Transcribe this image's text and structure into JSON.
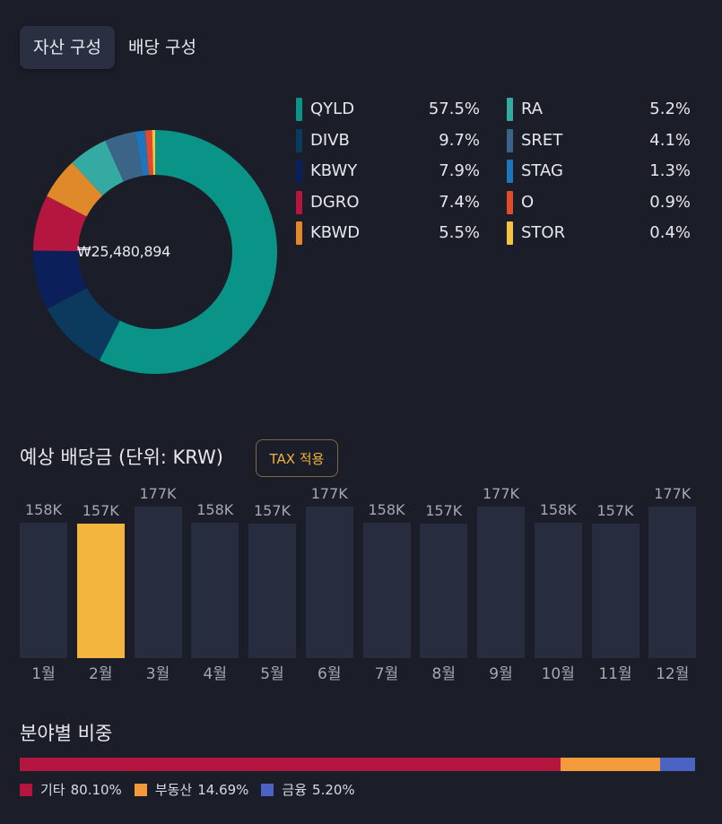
{
  "tabs": [
    {
      "label": "자산 구성",
      "active": true
    },
    {
      "label": "배당 구성",
      "active": false
    }
  ],
  "asset_composition": {
    "total": "₩25,480,894",
    "holdings": [
      {
        "ticker": "QYLD",
        "pct": "57.5%",
        "value": 57.5,
        "color": "#0a9387"
      },
      {
        "ticker": "DIVB",
        "pct": "9.7%",
        "value": 9.7,
        "color": "#0b3a5e"
      },
      {
        "ticker": "KBWY",
        "pct": "7.9%",
        "value": 7.9,
        "color": "#0b1f5a"
      },
      {
        "ticker": "DGRO",
        "pct": "7.4%",
        "value": 7.4,
        "color": "#b5163f"
      },
      {
        "ticker": "KBWD",
        "pct": "5.5%",
        "value": 5.5,
        "color": "#e0892a"
      },
      {
        "ticker": "RA",
        "pct": "5.2%",
        "value": 5.2,
        "color": "#34aaa3"
      },
      {
        "ticker": "SRET",
        "pct": "4.1%",
        "value": 4.1,
        "color": "#3c6487"
      },
      {
        "ticker": "STAG",
        "pct": "1.3%",
        "value": 1.3,
        "color": "#1f75bd"
      },
      {
        "ticker": "O",
        "pct": "0.9%",
        "value": 0.9,
        "color": "#e24a2c"
      },
      {
        "ticker": "STOR",
        "pct": "0.4%",
        "value": 0.4,
        "color": "#f6c343"
      }
    ]
  },
  "dividend_section": {
    "title": "예상 배당금 (단위: KRW)",
    "tax_button": "TAX 적용"
  },
  "chart_data": {
    "type": "bar",
    "categories": [
      "1월",
      "2월",
      "3월",
      "4월",
      "5월",
      "6월",
      "7월",
      "8월",
      "9월",
      "10월",
      "11월",
      "12월"
    ],
    "labels": [
      "158K",
      "157K",
      "177K",
      "158K",
      "157K",
      "177K",
      "158K",
      "157K",
      "177K",
      "158K",
      "157K",
      "177K"
    ],
    "values": [
      158,
      157,
      177,
      158,
      157,
      177,
      158,
      157,
      177,
      158,
      157,
      177
    ],
    "highlight_index": 1,
    "ylabel": "",
    "ylim": [
      0,
      177
    ],
    "colors": {
      "bar": "#272d3f",
      "highlight": "#f4b53f"
    }
  },
  "sector_section": {
    "title": "분야별 비중",
    "sectors": [
      {
        "name": "기타",
        "pct": "80.10%",
        "value": 80.1,
        "color": "#b5163f"
      },
      {
        "name": "부동산",
        "pct": "14.69%",
        "value": 14.69,
        "color": "#f39a3a"
      },
      {
        "name": "금융",
        "pct": "5.20%",
        "value": 5.2,
        "color": "#4b63c2"
      }
    ]
  }
}
